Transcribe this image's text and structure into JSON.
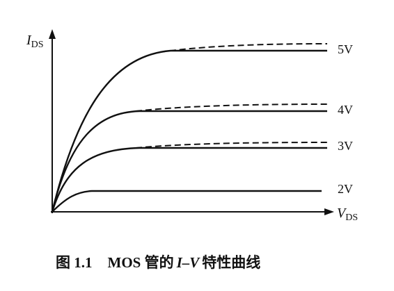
{
  "y_axis_label": {
    "main": "I",
    "sub": "DS"
  },
  "x_axis_label": {
    "main": "V",
    "sub": "DS"
  },
  "curve_labels": [
    "5V",
    "4V",
    "3V",
    "2V"
  ],
  "caption": {
    "number": "图 1.1",
    "prefix": "MOS 管的",
    "italic": "I–V",
    "suffix": "特性曲线"
  }
}
